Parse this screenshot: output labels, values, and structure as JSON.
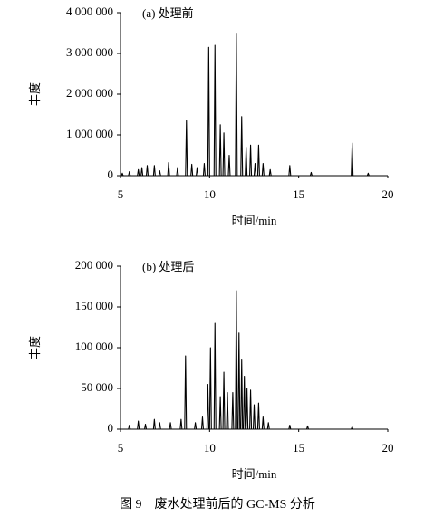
{
  "chart_data": [
    {
      "type": "line",
      "annotation": "(a) 处理前",
      "ylabel": "丰度",
      "xlabel": "时间/min",
      "color": "#000000",
      "xlim": [
        5,
        20
      ],
      "xticks": [
        5,
        10,
        15,
        20
      ],
      "ylim": [
        0,
        4000000
      ],
      "yticks": [
        0,
        {
          "value": 1000000,
          "label": "1 000 000"
        },
        {
          "value": 2000000,
          "label": "2 000 000"
        },
        {
          "value": 3000000,
          "label": "3 000 000"
        },
        {
          "value": 4000000,
          "label": "4 000 000"
        }
      ],
      "x": [
        5.0,
        5.05,
        5.1,
        5.15,
        5.45,
        5.5,
        5.55,
        5.95,
        6.0,
        6.05,
        6.15,
        6.2,
        6.25,
        6.45,
        6.5,
        6.55,
        6.85,
        6.9,
        6.95,
        7.15,
        7.2,
        7.25,
        7.65,
        7.7,
        7.75,
        8.15,
        8.2,
        8.25,
        8.65,
        8.7,
        8.75,
        8.95,
        9.0,
        9.05,
        9.25,
        9.3,
        9.35,
        9.65,
        9.7,
        9.75,
        9.9,
        9.95,
        10.0,
        10.25,
        10.3,
        10.35,
        10.55,
        10.6,
        10.65,
        10.75,
        10.8,
        10.85,
        11.05,
        11.1,
        11.15,
        11.45,
        11.5,
        11.55,
        11.75,
        11.8,
        11.85,
        12.0,
        12.05,
        12.1,
        12.25,
        12.3,
        12.35,
        12.5,
        12.55,
        12.6,
        12.7,
        12.75,
        12.8,
        12.95,
        13.0,
        13.05,
        13.35,
        13.4,
        13.45,
        14.45,
        14.5,
        14.55,
        15.65,
        15.7,
        15.75,
        17.95,
        18.0,
        18.05,
        18.85,
        18.9,
        18.95,
        20.0
      ],
      "values": [
        0,
        0,
        60000,
        0,
        0,
        100000,
        0,
        0,
        150000,
        0,
        0,
        200000,
        0,
        0,
        250000,
        0,
        0,
        250000,
        0,
        0,
        120000,
        0,
        0,
        320000,
        0,
        0,
        200000,
        0,
        0,
        1350000,
        0,
        0,
        280000,
        0,
        0,
        200000,
        0,
        0,
        300000,
        0,
        0,
        3150000,
        0,
        0,
        3200000,
        0,
        0,
        1250000,
        0,
        0,
        1050000,
        0,
        0,
        500000,
        0,
        0,
        3500000,
        0,
        0,
        1450000,
        0,
        0,
        700000,
        0,
        0,
        750000,
        0,
        0,
        300000,
        0,
        0,
        750000,
        0,
        0,
        300000,
        0,
        0,
        150000,
        0,
        0,
        250000,
        0,
        0,
        80000,
        0,
        0,
        800000,
        0,
        0,
        60000,
        0,
        0
      ]
    },
    {
      "type": "line",
      "annotation": "(b) 处理后",
      "ylabel": "丰度",
      "xlabel": "时间/min",
      "color": "#000000",
      "xlim": [
        5,
        20
      ],
      "xticks": [
        5,
        10,
        15,
        20
      ],
      "ylim": [
        0,
        200000
      ],
      "yticks": [
        0,
        {
          "value": 50000,
          "label": "50 000"
        },
        {
          "value": 100000,
          "label": "100 000"
        },
        {
          "value": 150000,
          "label": "150 000"
        },
        {
          "value": 200000,
          "label": "200 000"
        }
      ],
      "x": [
        5.0,
        5.45,
        5.5,
        5.55,
        5.95,
        6.0,
        6.05,
        6.35,
        6.4,
        6.45,
        6.85,
        6.9,
        6.95,
        7.15,
        7.2,
        7.25,
        7.75,
        7.8,
        7.85,
        8.35,
        8.4,
        8.45,
        8.6,
        8.65,
        8.7,
        9.15,
        9.2,
        9.25,
        9.55,
        9.6,
        9.65,
        9.85,
        9.9,
        9.95,
        10.0,
        10.05,
        10.1,
        10.25,
        10.3,
        10.35,
        10.55,
        10.6,
        10.65,
        10.75,
        10.8,
        10.85,
        10.95,
        11.0,
        11.05,
        11.25,
        11.3,
        11.35,
        11.45,
        11.5,
        11.55,
        11.6,
        11.65,
        11.7,
        11.75,
        11.8,
        11.85,
        11.9,
        11.95,
        12.0,
        12.05,
        12.1,
        12.15,
        12.25,
        12.3,
        12.35,
        12.45,
        12.5,
        12.55,
        12.7,
        12.75,
        12.8,
        12.95,
        13.0,
        13.05,
        13.25,
        13.3,
        13.35,
        14.45,
        14.5,
        14.55,
        15.45,
        15.5,
        15.55,
        17.95,
        18.0,
        18.05,
        20.0
      ],
      "values": [
        0,
        0,
        5000,
        0,
        0,
        10000,
        0,
        0,
        6000,
        0,
        0,
        12000,
        0,
        0,
        8000,
        0,
        0,
        8000,
        0,
        0,
        12000,
        0,
        0,
        90000,
        0,
        0,
        8000,
        0,
        0,
        15000,
        0,
        0,
        55000,
        0,
        0,
        100000,
        0,
        0,
        130000,
        0,
        0,
        40000,
        0,
        0,
        70000,
        0,
        0,
        45000,
        0,
        0,
        45000,
        0,
        0,
        170000,
        0,
        0,
        118000,
        0,
        0,
        85000,
        0,
        0,
        65000,
        0,
        0,
        50000,
        0,
        0,
        48000,
        0,
        0,
        30000,
        0,
        0,
        32000,
        0,
        0,
        15000,
        0,
        0,
        8000,
        0,
        0,
        5000,
        0,
        0,
        4000,
        0,
        0,
        3000,
        0,
        0
      ]
    }
  ],
  "caption": "图 9　废水处理前后的 GC-MS 分析"
}
